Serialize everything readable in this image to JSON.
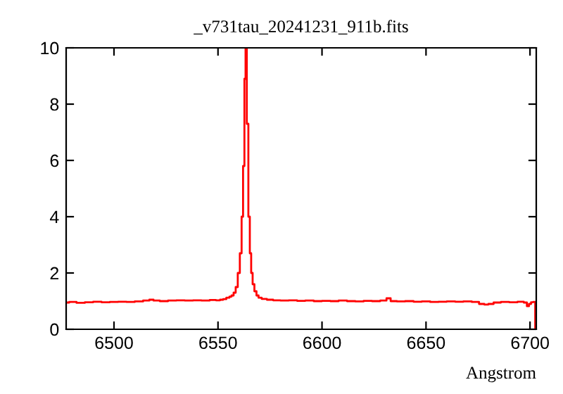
{
  "chart_data": {
    "type": "step",
    "title": "_v731tau_20241231_911b.fits",
    "xlabel": "Angstrom",
    "xlim": [
      6477,
      6703
    ],
    "ylim": [
      0,
      10
    ],
    "xticks": [
      6500,
      6550,
      6600,
      6650,
      6700
    ],
    "yticks": [
      0,
      2,
      4,
      6,
      8,
      10
    ],
    "grid": false,
    "series": [
      {
        "color": "#ff0000",
        "x": [
          6477,
          6480,
          6484,
          6488,
          6492,
          6496,
          6500,
          6504,
          6508,
          6512,
          6516,
          6518,
          6520,
          6524,
          6528,
          6532,
          6536,
          6540,
          6544,
          6548,
          6550,
          6552,
          6553,
          6555,
          6556,
          6557,
          6558,
          6559,
          6560,
          6561,
          6561.7,
          6562.4,
          6563,
          6563.5,
          6564.2,
          6565,
          6565.6,
          6566.3,
          6567,
          6568,
          6569,
          6570,
          6572,
          6575,
          6578,
          6582,
          6586,
          6590,
          6594,
          6598,
          6602,
          6606,
          6610,
          6614,
          6618,
          6622,
          6626,
          6630,
          6632,
          6634,
          6638,
          6642,
          6646,
          6650,
          6654,
          6658,
          6662,
          6666,
          6670,
          6674,
          6677,
          6679,
          6681,
          6684,
          6688,
          6692,
          6696,
          6698,
          6699,
          6700,
          6701,
          6702,
          6703
        ],
        "values": [
          0.95,
          0.97,
          0.94,
          0.96,
          0.98,
          0.96,
          0.97,
          0.98,
          0.97,
          0.99,
          1.02,
          1.05,
          1.02,
          1.0,
          1.02,
          1.03,
          1.02,
          1.03,
          1.02,
          1.04,
          1.03,
          1.05,
          1.07,
          1.12,
          1.16,
          1.2,
          1.3,
          1.5,
          2.0,
          2.7,
          4.0,
          5.8,
          8.9,
          10,
          7.3,
          4.0,
          2.7,
          2.0,
          1.6,
          1.35,
          1.2,
          1.12,
          1.08,
          1.05,
          1.03,
          1.02,
          1.03,
          1.01,
          1.02,
          1.0,
          1.01,
          1.0,
          1.02,
          1.0,
          0.99,
          1.01,
          1.0,
          1.02,
          1.1,
          1.0,
          0.99,
          1.0,
          0.98,
          0.99,
          0.97,
          0.98,
          0.99,
          0.98,
          0.99,
          0.97,
          0.9,
          0.88,
          0.9,
          0.95,
          0.97,
          0.96,
          0.98,
          0.95,
          0.82,
          0.9,
          0.96,
          0.97,
          0
        ]
      }
    ]
  }
}
